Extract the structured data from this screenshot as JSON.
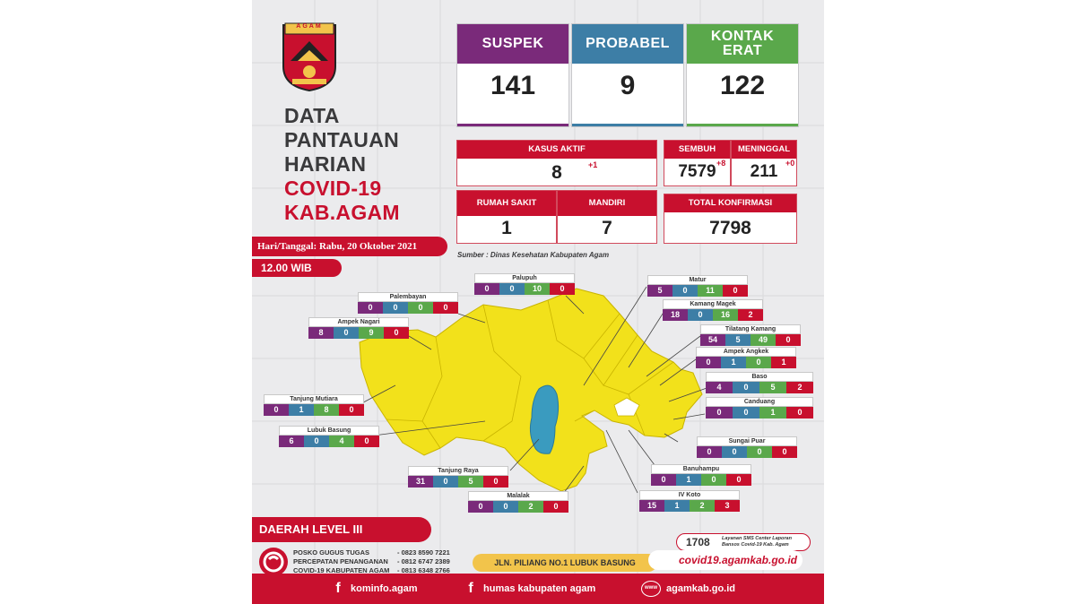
{
  "title": {
    "line1": "DATA",
    "line2": "PANTAUAN",
    "line3": "HARIAN",
    "line4": "COVID-19",
    "line5": "KAB.AGAM"
  },
  "logo_text": "AGAM",
  "date": "Hari/Tanggal:  Rabu, 20 Oktober 2021",
  "time": "12.00 WIB",
  "top_stats": [
    {
      "label": "SUSPEK",
      "value": "141",
      "color": "#7a2a7a"
    },
    {
      "label": "PROBABEL",
      "value": "9",
      "color": "#3d7ea6"
    },
    {
      "label": "KONTAK ERAT",
      "value": "122",
      "color": "#5aa84b"
    }
  ],
  "kasus_aktif": {
    "label": "KASUS AKTIF",
    "value": "8",
    "delta": "+1"
  },
  "rumah_sakit": {
    "label": "RUMAH SAKIT",
    "value": "1"
  },
  "mandiri": {
    "label": "MANDIRI",
    "value": "7"
  },
  "sembuh": {
    "label": "SEMBUH",
    "value": "7579",
    "delta": "+8"
  },
  "meninggal": {
    "label": "MENINGGAL",
    "value": "211",
    "delta": "+0"
  },
  "total_konfirmasi": {
    "label": "TOTAL KONFIRMASI",
    "value": "7798"
  },
  "source": "Sumber : Dinas Kesehatan Kabupaten Agam",
  "districts": [
    {
      "name": "Palupuh",
      "values": [
        "0",
        "0",
        "10",
        "0"
      ]
    },
    {
      "name": "Palembayan",
      "values": [
        "0",
        "0",
        "0",
        "0"
      ]
    },
    {
      "name": "Ampek Nagari",
      "values": [
        "8",
        "0",
        "9",
        "0"
      ]
    },
    {
      "name": "Tanjung Mutiara",
      "values": [
        "0",
        "1",
        "8",
        "0"
      ]
    },
    {
      "name": "Lubuk Basung",
      "values": [
        "6",
        "0",
        "4",
        "0"
      ]
    },
    {
      "name": "Tanjung Raya",
      "values": [
        "31",
        "0",
        "5",
        "0"
      ]
    },
    {
      "name": "Malalak",
      "values": [
        "0",
        "0",
        "2",
        "0"
      ]
    },
    {
      "name": "IV Koto",
      "values": [
        "15",
        "1",
        "2",
        "3"
      ]
    },
    {
      "name": "Banuhampu",
      "values": [
        "0",
        "1",
        "0",
        "0"
      ]
    },
    {
      "name": "Sungai Puar",
      "values": [
        "0",
        "0",
        "0",
        "0"
      ]
    },
    {
      "name": "Canduang",
      "values": [
        "0",
        "0",
        "1",
        "0"
      ]
    },
    {
      "name": "Baso",
      "values": [
        "4",
        "0",
        "5",
        "2"
      ]
    },
    {
      "name": "Ampek Angkek",
      "values": [
        "0",
        "1",
        "0",
        "1"
      ]
    },
    {
      "name": "Tilatang Kamang",
      "values": [
        "54",
        "5",
        "49",
        "0"
      ]
    },
    {
      "name": "Kamang Magek",
      "values": [
        "18",
        "0",
        "16",
        "2"
      ]
    },
    {
      "name": "Matur",
      "values": [
        "5",
        "0",
        "11",
        "0"
      ]
    }
  ],
  "level": "DAERAH LEVEL  III",
  "posko": {
    "line1": "POSKO GUGUS TUGAS",
    "line2": "PERCEPATAN PENANGANAN",
    "line3": "COVID-19 KABUPATEN AGAM",
    "phone1": "- 0823 8590 7221",
    "phone2": "- 0812 6747 2389",
    "phone3": "- 0813 6348 2766"
  },
  "address": "JLN. PILIANG NO.1 LUBUK BASUNG",
  "sms": {
    "number": "1708",
    "text": "Layanan SMS Center Laporan Bansos Covid-19 Kab. Agam"
  },
  "website_main": "covid19.agamkab.go.id",
  "footer": {
    "fb1": "kominfo.agam",
    "fb2": "humas kabupaten agam",
    "web": "agamkab.go.id",
    "www_icon": "www"
  },
  "colors": {
    "red": "#c8102e",
    "purple": "#7a2a7a",
    "blue": "#3d7ea6",
    "green": "#5aa84b",
    "map_yellow": "#f2e11b",
    "lake": "#3a9bbf"
  }
}
